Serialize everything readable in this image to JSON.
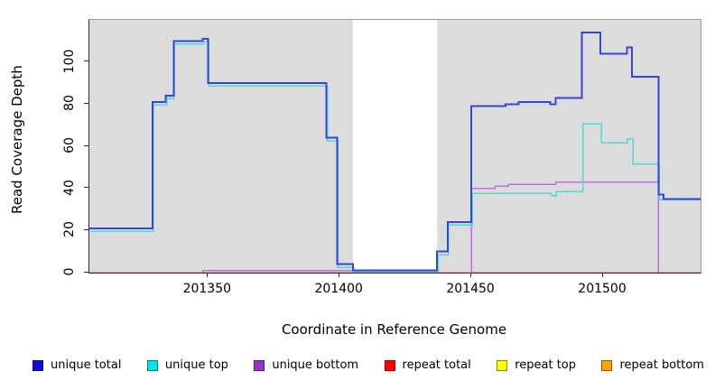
{
  "chart_data": {
    "type": "line",
    "subtype": "step-coverage-plot",
    "title": "",
    "xlabel": "Coordinate in Reference Genome",
    "ylabel": "Read Coverage Depth",
    "xlim": [
      201305,
      201537
    ],
    "ylim": [
      0,
      120
    ],
    "xticks": [
      201350,
      201400,
      201450,
      201500
    ],
    "yticks": [
      0,
      20,
      40,
      60,
      80,
      100
    ],
    "grid": false,
    "plot_background": "#ffffff",
    "highlight_band_color": "#dcdcdc",
    "background_bands": [
      {
        "from": 201305,
        "to": 201405
      },
      {
        "from": 201437,
        "to": 201537
      }
    ],
    "series": [
      {
        "name": "repeat top",
        "color": "#ffe100",
        "width": 1.5,
        "dy": 0.8,
        "segments": [
          [
            [
              201305,
              0
            ],
            [
              201537,
              0
            ]
          ]
        ]
      },
      {
        "name": "unique bottom",
        "color": "#bb6fdd",
        "width": 1.5,
        "dy": 0,
        "segments": [
          [
            [
              201305,
              0
            ],
            [
              201348,
              1
            ],
            [
              201437,
              0
            ],
            [
              201450,
              40
            ],
            [
              201459,
              41
            ],
            [
              201464,
              42
            ],
            [
              201482,
              43
            ],
            [
              201521,
              0
            ],
            [
              201537,
              0
            ]
          ]
        ]
      },
      {
        "name": "repeat total",
        "color": "#e24f8e",
        "width": 1.5,
        "dy": 0,
        "segments": [
          [
            [
              201305,
              0
            ],
            [
              201537,
              0
            ]
          ]
        ]
      },
      {
        "name": "repeat bottom",
        "color": "#ffa41b",
        "width": 1.8,
        "dy": 0.8,
        "segments": [
          [
            [
              201348,
              0
            ],
            [
              201399,
              0
            ]
          ],
          [
            [
              201451,
              0
            ],
            [
              201521,
              0
            ]
          ]
        ]
      },
      {
        "name": "unique top",
        "color": "#4fd9d9",
        "width": 1.5,
        "dy": 1.1,
        "dx": 0.9,
        "segments": [
          [
            [
              201305,
              20
            ],
            [
              201329,
              80
            ],
            [
              201334,
              83
            ],
            [
              201337,
              109
            ],
            [
              201348,
              110
            ],
            [
              201350,
              89
            ],
            [
              201395,
              63
            ],
            [
              201399,
              3
            ],
            [
              201405,
              1
            ],
            [
              201437,
              9
            ],
            [
              201441,
              23
            ],
            [
              201450,
              38
            ],
            [
              201480,
              37
            ],
            [
              201482,
              39
            ],
            [
              201492,
              71
            ],
            [
              201499,
              62
            ],
            [
              201509,
              64
            ],
            [
              201511,
              52
            ],
            [
              201521,
              35
            ],
            [
              201537,
              35
            ]
          ]
        ]
      },
      {
        "name": "unique total",
        "color": "#3346d8",
        "width": 2,
        "dy": 0,
        "segments": [
          [
            [
              201305,
              21
            ],
            [
              201329,
              81
            ],
            [
              201334,
              84
            ],
            [
              201337,
              110
            ],
            [
              201348,
              111
            ],
            [
              201350,
              90
            ],
            [
              201395,
              64
            ],
            [
              201399,
              4
            ],
            [
              201405,
              1
            ],
            [
              201437,
              10
            ],
            [
              201441,
              24
            ],
            [
              201450,
              79
            ],
            [
              201463,
              80
            ],
            [
              201468,
              81
            ],
            [
              201480,
              80
            ],
            [
              201482,
              83
            ],
            [
              201492,
              114
            ],
            [
              201499,
              104
            ],
            [
              201509,
              107
            ],
            [
              201511,
              93
            ],
            [
              201521,
              37
            ],
            [
              201523,
              35
            ],
            [
              201537,
              35
            ]
          ]
        ]
      }
    ],
    "legend": [
      {
        "label": "unique total",
        "color": "#0f0fd6"
      },
      {
        "label": "unique top",
        "color": "#00e5e5"
      },
      {
        "label": "unique bottom",
        "color": "#9932cc"
      },
      {
        "label": "repeat total",
        "color": "#fb0006"
      },
      {
        "label": "repeat top",
        "color": "#fdfd00"
      },
      {
        "label": "repeat bottom",
        "color": "#ffa500"
      }
    ],
    "legend_position": "bottom"
  }
}
